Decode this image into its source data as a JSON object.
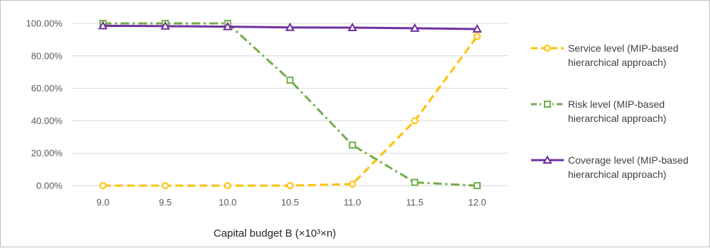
{
  "chart_data": {
    "type": "line",
    "title": "",
    "xlabel": "Capital budget B (×10³×n)",
    "ylabel": "",
    "x": [
      "9.0",
      "9.5",
      "10.0",
      "10.5",
      "11.0",
      "11.5",
      "12.0"
    ],
    "y_ticks": [
      "0.00%",
      "20.00%",
      "40.00%",
      "60.00%",
      "80.00%",
      "100.00%"
    ],
    "ylim": [
      0,
      100
    ],
    "grid": "horizontal",
    "legend_position": "right",
    "series": [
      {
        "name": "Service level (MIP-based hierarchical approach)",
        "legend_lines": [
          "Service level (MIP-based",
          "hierarchical approach)"
        ],
        "values": [
          0,
          0,
          0,
          0,
          1,
          40,
          92
        ],
        "color": "#FFC000",
        "marker": "circle",
        "line_style": "dash"
      },
      {
        "name": "Risk level (MIP-based hierarchical approach)",
        "legend_lines": [
          "Risk level (MIP-based",
          "hierarchical approach)"
        ],
        "values": [
          100,
          100,
          100,
          65,
          25,
          2,
          0
        ],
        "color": "#70AD47",
        "marker": "square",
        "line_style": "dash-dot"
      },
      {
        "name": "Coverage level (MIP-based hierarchical approach)",
        "legend_lines": [
          "Coverage level (MIP-based",
          "hierarchical approach)"
        ],
        "values": [
          98.5,
          98.3,
          98,
          97.5,
          97.4,
          97,
          96.5
        ],
        "color": "#7030A0",
        "marker": "triangle",
        "line_style": "solid"
      }
    ]
  }
}
